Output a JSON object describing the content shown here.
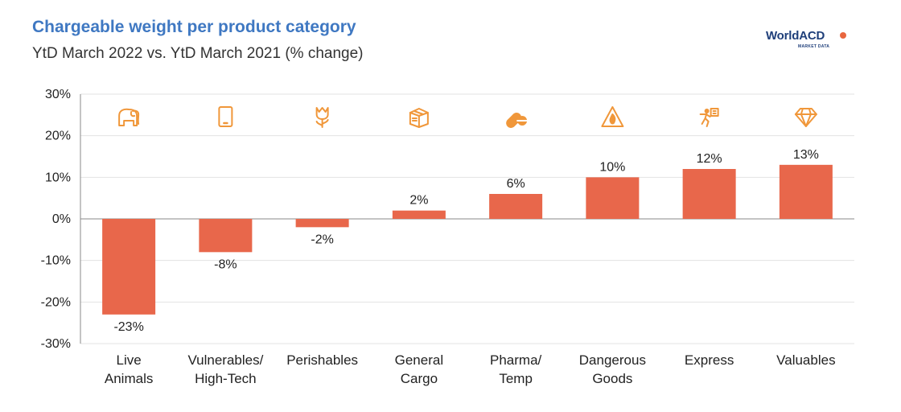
{
  "chart_data": {
    "type": "bar",
    "title": "Chargeable weight per product category",
    "subtitle": "YtD March 2022 vs. YtD March 2021 (% change)",
    "categories": [
      [
        "Live",
        "Animals"
      ],
      [
        "Vulnerables/",
        "High-Tech"
      ],
      [
        "Perishables"
      ],
      [
        "General",
        "Cargo"
      ],
      [
        "Pharma/",
        "Temp"
      ],
      [
        "Dangerous",
        "Goods"
      ],
      [
        "Express"
      ],
      [
        "Valuables"
      ]
    ],
    "values": [
      -23,
      -8,
      -2,
      2,
      6,
      10,
      12,
      13
    ],
    "data_labels": [
      "-23%",
      "-8%",
      "-2%",
      "2%",
      "6%",
      "10%",
      "12%",
      "13%"
    ],
    "icons": [
      "elephant-icon",
      "smartphone-icon",
      "tulip-icon",
      "box-icon",
      "pill-icon",
      "fire-warning-icon",
      "courier-icon",
      "diamond-icon"
    ],
    "yticks": [
      "30%",
      "20%",
      "10%",
      "0%",
      "-10%",
      "-20%",
      "-30%"
    ],
    "ylim": [
      -30,
      30
    ],
    "xlabel": "",
    "ylabel": "",
    "bar_color": "#e8674b",
    "icon_color": "#f0973a",
    "grid": true
  },
  "logo": {
    "name": "WorldACD",
    "tagline": "MARKET DATA"
  }
}
